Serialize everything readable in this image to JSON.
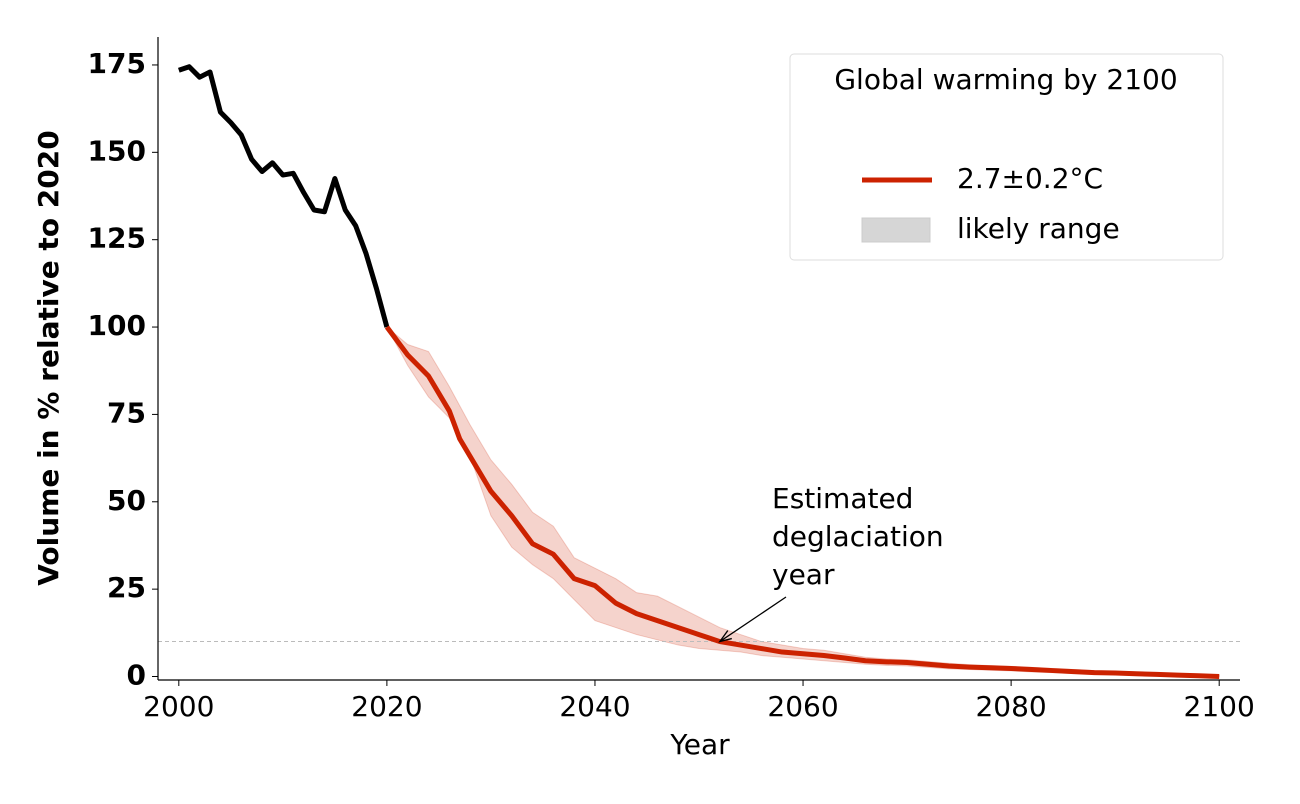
{
  "chart_data": {
    "type": "line",
    "xlabel": "Year",
    "ylabel": "Volume in % relative to 2020",
    "xlim": [
      1998,
      2102
    ],
    "ylim": [
      -1,
      183
    ],
    "xticks": [
      2000,
      2020,
      2040,
      2060,
      2080,
      2100
    ],
    "yticks": [
      0,
      25,
      50,
      75,
      100,
      125,
      150,
      175
    ],
    "legend_title": "Global warming by 2100",
    "legend_position": "upper right",
    "series": [
      {
        "color": "#000000",
        "x": [
          2000,
          2001,
          2002,
          2003,
          2004,
          2005,
          2006,
          2007,
          2008,
          2009,
          2010,
          2011,
          2012,
          2013,
          2014,
          2015,
          2016,
          2017,
          2018,
          2019,
          2020
        ],
        "values": [
          173.5,
          174.5,
          171.5,
          173,
          161.5,
          158.5,
          155,
          148,
          144.5,
          147,
          143.5,
          144,
          138.5,
          133.5,
          133,
          142.5,
          133.5,
          129,
          121,
          111,
          100
        ]
      },
      {
        "name": "2.7±0.2°C",
        "color": "#cc2200",
        "x": [
          2020,
          2022,
          2024,
          2026,
          2027,
          2028,
          2030,
          2032,
          2034,
          2036,
          2038,
          2040,
          2042,
          2044,
          2046,
          2048,
          2050,
          2052,
          2054,
          2056,
          2058,
          2060,
          2062,
          2064,
          2066,
          2068,
          2070,
          2072,
          2074,
          2076,
          2078,
          2080,
          2082,
          2084,
          2086,
          2088,
          2090,
          2092,
          2094,
          2096,
          2098,
          2100
        ],
        "values": [
          100,
          92,
          86,
          76,
          68,
          63,
          53,
          46,
          38,
          35,
          28,
          26,
          21,
          18,
          16,
          14,
          12,
          10,
          9,
          8,
          7,
          6.5,
          6,
          5.3,
          4.5,
          4.2,
          4,
          3.5,
          3,
          2.7,
          2.5,
          2.3,
          2,
          1.7,
          1.4,
          1.1,
          1,
          0.8,
          0.6,
          0.4,
          0.2,
          0
        ]
      }
    ],
    "band": {
      "name": "likely range",
      "color": "#cc2200",
      "legend_color": "#d6d6d6",
      "x": [
        2020,
        2022,
        2024,
        2026,
        2028,
        2030,
        2032,
        2034,
        2036,
        2038,
        2040,
        2042,
        2044,
        2046,
        2048,
        2050,
        2052,
        2054,
        2056,
        2058,
        2060,
        2062,
        2064,
        2066,
        2068,
        2070,
        2072,
        2074,
        2076,
        2078,
        2080,
        2082,
        2084,
        2086,
        2088,
        2090,
        2092,
        2094,
        2096,
        2098,
        2100
      ],
      "lower": [
        100,
        89,
        80,
        74,
        63,
        46,
        37,
        32,
        28,
        22,
        16,
        14,
        12,
        10.5,
        9,
        8,
        7.5,
        7,
        6,
        5.5,
        5,
        4.5,
        4,
        3.5,
        3.2,
        3,
        2.6,
        2.2,
        2,
        1.8,
        1.6,
        1.3,
        1.1,
        0.9,
        0.7,
        0.6,
        0.4,
        0.3,
        0.2,
        0.1,
        0
      ],
      "upper": [
        100,
        95,
        93,
        83,
        72,
        62,
        55,
        47,
        43,
        34,
        31,
        28,
        24,
        23,
        20,
        17,
        14,
        12,
        10,
        9,
        8,
        7.5,
        6.5,
        5.5,
        5,
        4.8,
        4.3,
        3.8,
        3.4,
        3.1,
        2.9,
        2.6,
        2.3,
        2,
        1.7,
        1.5,
        1.3,
        1,
        0.8,
        0.5,
        0.3
      ]
    },
    "threshold": 10,
    "annotation": {
      "text": [
        "Estimated",
        "deglaciation",
        "year"
      ],
      "x": 2052,
      "y": 10
    }
  }
}
